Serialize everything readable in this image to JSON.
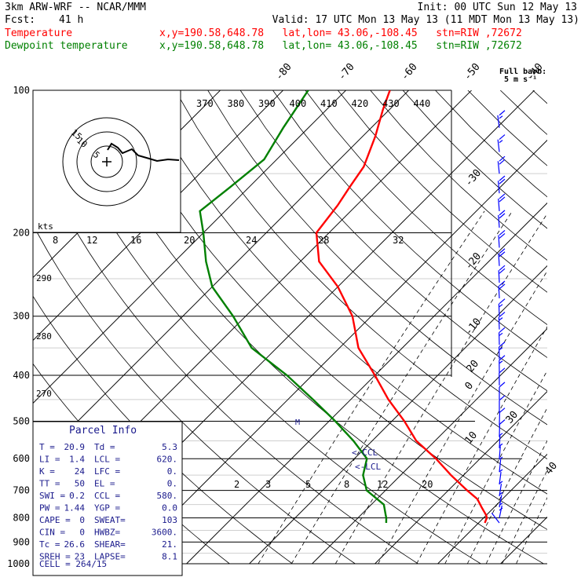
{
  "header": {
    "model": "3km ARW-WRF -- NCAR/MMM",
    "init": "Init: 00 UTC Sun 12 May 13",
    "fcst_label": "Fcst:",
    "fcst_value": "41 h",
    "valid": "Valid: 17 UTC Mon 13 May 13 (11 MDT Mon 13 May 13)",
    "temp_label": "Temperature",
    "temp_info": "x,y=190.58,648.78   lat,lon= 43.06,-108.45   stn=RIW ,72672",
    "dew_label": "Dewpoint temperature",
    "dew_info": "x,y=190.58,648.78   lat,lon= 43.06,-108.45   stn=RIW ,72672"
  },
  "barb_legend": {
    "line1": "Full barb:",
    "line2": "5 m s⁻¹"
  },
  "hodograph": {
    "units": "kts",
    "ring_labels": [
      "5",
      "10",
      "15"
    ]
  },
  "parcel": {
    "title": "Parcel Info",
    "rows": [
      [
        "T  =",
        "20.9",
        "Td =",
        "5.3"
      ],
      [
        "LI =",
        "1.4",
        "LCL =",
        "620."
      ],
      [
        "K  =",
        "24",
        "LFC =",
        "0."
      ],
      [
        "TT =",
        "50",
        "EL  =",
        "0."
      ],
      [
        "SWI =",
        "0.2",
        "CCL =",
        "580."
      ],
      [
        "PW =",
        "1.44",
        "YGP =",
        "0.0"
      ],
      [
        "CAPE =",
        "0",
        "SWEAT=",
        "103"
      ],
      [
        "CIN =",
        "0",
        "HWBZ=",
        "3600."
      ],
      [
        "Tc =",
        "26.6",
        "SHEAR=",
        "21."
      ],
      [
        "SREH =",
        "23",
        "LAPSE=",
        "8.1"
      ]
    ],
    "cell": "CELL = 264/15"
  },
  "markers": {
    "m": "M",
    "ccl": "<-CCL",
    "lcl": "<-LCL"
  },
  "colors": {
    "temperature": "#ff0000",
    "dewpoint": "#008000",
    "barbs": "#0000ff",
    "hodograph": "#000000"
  },
  "chart_data": {
    "type": "line",
    "title": "",
    "ylabel": "",
    "y_scale": "log-pressure (hPa)",
    "pressure_levels": [
      "100",
      "200",
      "300",
      "400",
      "500",
      "600",
      "700",
      "800",
      "900",
      "1000"
    ],
    "isotherm_labels": [
      "-80",
      "-70",
      "-60",
      "-50",
      "-40",
      "-30",
      "-20",
      "-10",
      "0",
      "10",
      "20",
      "30",
      "40"
    ],
    "theta_labels_top": [
      "370",
      "380",
      "390",
      "400",
      "410",
      "420",
      "430",
      "440"
    ],
    "theta_labels_left": [
      "290",
      "280",
      "270"
    ],
    "mixing_ratio_labels": [
      "8",
      "12",
      "16",
      "20",
      "24",
      "28",
      "32",
      "2",
      "3",
      "5",
      "8",
      "12",
      "20"
    ],
    "series": [
      {
        "name": "Temperature",
        "points": [
          [
            100,
            -63
          ],
          [
            110,
            -61
          ],
          [
            125,
            -58
          ],
          [
            145,
            -55
          ],
          [
            160,
            -54
          ],
          [
            175,
            -53
          ],
          [
            200,
            -52
          ],
          [
            230,
            -47
          ],
          [
            260,
            -40
          ],
          [
            300,
            -33
          ],
          [
            350,
            -27
          ],
          [
            400,
            -20
          ],
          [
            450,
            -14
          ],
          [
            500,
            -8
          ],
          [
            550,
            -3
          ],
          [
            600,
            3
          ],
          [
            650,
            8
          ],
          [
            700,
            13
          ],
          [
            730,
            16
          ],
          [
            760,
            18
          ],
          [
            790,
            20
          ],
          [
            800,
            20.5
          ],
          [
            820,
            21
          ]
        ]
      },
      {
        "name": "Dewpoint temperature",
        "points": [
          [
            100,
            -76
          ],
          [
            120,
            -74
          ],
          [
            140,
            -72
          ],
          [
            160,
            -73
          ],
          [
            180,
            -74
          ],
          [
            200,
            -70
          ],
          [
            230,
            -65
          ],
          [
            260,
            -60
          ],
          [
            300,
            -52
          ],
          [
            350,
            -44
          ],
          [
            400,
            -34
          ],
          [
            450,
            -26
          ],
          [
            500,
            -19
          ],
          [
            550,
            -13
          ],
          [
            600,
            -8
          ],
          [
            650,
            -6
          ],
          [
            700,
            -3
          ],
          [
            750,
            2
          ],
          [
            790,
            4
          ],
          [
            800,
            4.5
          ],
          [
            820,
            5.3
          ]
        ]
      }
    ],
    "wind_barbs": {
      "units": "m s-1",
      "levels": [
        [
          120,
          220,
          15
        ],
        [
          135,
          225,
          15
        ],
        [
          150,
          230,
          20
        ],
        [
          165,
          235,
          20
        ],
        [
          180,
          240,
          20
        ],
        [
          195,
          240,
          20
        ],
        [
          215,
          245,
          20
        ],
        [
          235,
          245,
          20
        ],
        [
          255,
          250,
          20
        ],
        [
          275,
          250,
          20
        ],
        [
          300,
          255,
          15
        ],
        [
          320,
          255,
          15
        ],
        [
          345,
          260,
          15
        ],
        [
          370,
          260,
          15
        ],
        [
          395,
          265,
          15
        ],
        [
          420,
          265,
          10
        ],
        [
          450,
          270,
          10
        ],
        [
          480,
          270,
          10
        ],
        [
          510,
          280,
          10
        ],
        [
          540,
          280,
          10
        ],
        [
          570,
          290,
          5
        ],
        [
          600,
          300,
          5
        ],
        [
          640,
          310,
          5
        ],
        [
          680,
          320,
          5
        ],
        [
          720,
          330,
          5
        ],
        [
          760,
          340,
          5
        ],
        [
          800,
          350,
          5
        ],
        [
          820,
          20,
          5
        ]
      ]
    }
  }
}
